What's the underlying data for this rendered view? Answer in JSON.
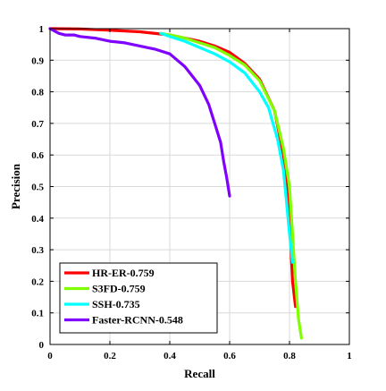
{
  "chart_data": {
    "type": "line",
    "title": "",
    "xlabel": "Recall",
    "ylabel": "Precision",
    "xlim": [
      0,
      1
    ],
    "ylim": [
      0,
      1
    ],
    "xticks": [
      "0",
      "0.2",
      "0.4",
      "0.6",
      "0.8",
      "1"
    ],
    "yticks": [
      "0",
      "0.1",
      "0.2",
      "0.3",
      "0.4",
      "0.5",
      "0.6",
      "0.7",
      "0.8",
      "0.9",
      "1"
    ],
    "grid": true,
    "legend_position": "bottom-left",
    "series": [
      {
        "name": "HR-ER-0.759",
        "color": "#ff0000",
        "x": [
          0,
          0.1,
          0.2,
          0.3,
          0.4,
          0.5,
          0.55,
          0.6,
          0.65,
          0.7,
          0.75,
          0.78,
          0.8,
          0.81,
          0.82
        ],
        "y": [
          1.0,
          0.999,
          0.995,
          0.99,
          0.98,
          0.96,
          0.945,
          0.925,
          0.89,
          0.84,
          0.74,
          0.6,
          0.4,
          0.2,
          0.12
        ]
      },
      {
        "name": "S3FD-0.759",
        "color": "#7fff00",
        "x": [
          0.37,
          0.4,
          0.45,
          0.5,
          0.55,
          0.6,
          0.65,
          0.7,
          0.75,
          0.78,
          0.8,
          0.81,
          0.82,
          0.83,
          0.84
        ],
        "y": [
          0.985,
          0.98,
          0.97,
          0.955,
          0.94,
          0.915,
          0.885,
          0.835,
          0.74,
          0.62,
          0.5,
          0.35,
          0.2,
          0.08,
          0.02
        ]
      },
      {
        "name": "SSH-0.735",
        "color": "#00ffff",
        "x": [
          0.37,
          0.4,
          0.45,
          0.5,
          0.55,
          0.6,
          0.65,
          0.7,
          0.73,
          0.76,
          0.78,
          0.79,
          0.8,
          0.81
        ],
        "y": [
          0.985,
          0.975,
          0.96,
          0.94,
          0.92,
          0.895,
          0.86,
          0.8,
          0.75,
          0.65,
          0.55,
          0.45,
          0.35,
          0.26
        ]
      },
      {
        "name": "Faster-RCNN-0.548",
        "color": "#8000ff",
        "x": [
          0,
          0.03,
          0.05,
          0.08,
          0.1,
          0.15,
          0.2,
          0.25,
          0.3,
          0.35,
          0.4,
          0.45,
          0.5,
          0.53,
          0.55,
          0.57,
          0.58,
          0.59,
          0.6
        ],
        "y": [
          1.0,
          0.985,
          0.98,
          0.98,
          0.975,
          0.97,
          0.96,
          0.955,
          0.945,
          0.935,
          0.92,
          0.88,
          0.82,
          0.76,
          0.7,
          0.64,
          0.58,
          0.53,
          0.47
        ]
      }
    ]
  }
}
